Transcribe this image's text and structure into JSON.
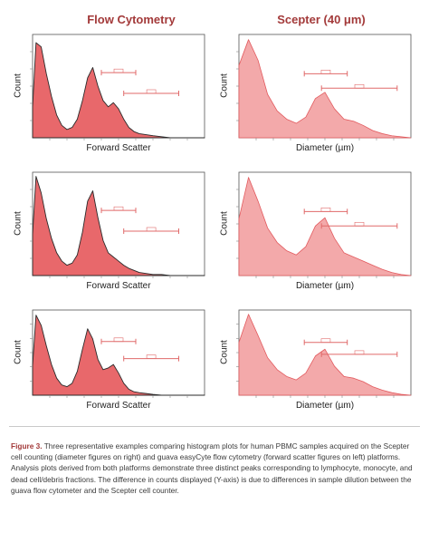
{
  "titles": {
    "left": "Flow Cytometry",
    "right": "Scepter (40 μm)"
  },
  "colors": {
    "fill": "#e8686b",
    "fill_light": "#f3a9aa",
    "outline_flow": "#2a2a2a",
    "outline_scepter": "#e25a5e",
    "title": "#a33a3a",
    "gate": "#e06a6a"
  },
  "caption": {
    "label": "Figure 3.",
    "text": "Three representative examples comparing histogram plots for human PBMC samples acquired on the Scepter cell counting (diameter figures on right) and guava easyCyte flow cytometry (forward scatter figures on left) platforms. Analysis plots derived from both platforms demonstrate three distinct peaks corresponding to lymphocyte, monocyte, and dead cell/debris fractions. The difference in counts displayed (Y-axis) is due to differences in sample dilution between the guava flow cytometer and the Scepter cell counter."
  },
  "chart_data": [
    {
      "type": "area",
      "panel": "flow",
      "row": 1,
      "ylabel": "Count",
      "xlabel": "Forward Scatter",
      "x": [
        0,
        200,
        500,
        800,
        1100,
        1400,
        1700,
        2000,
        2300,
        2600,
        2900,
        3200,
        3500,
        3800,
        4100,
        4400,
        4700,
        5000,
        5300,
        5600,
        5900,
        6200,
        6600,
        7000,
        7500,
        8000,
        9000,
        10000
      ],
      "y": [
        0.3,
        0.92,
        0.88,
        0.62,
        0.4,
        0.22,
        0.12,
        0.08,
        0.1,
        0.18,
        0.36,
        0.58,
        0.68,
        0.5,
        0.36,
        0.3,
        0.34,
        0.28,
        0.18,
        0.1,
        0.06,
        0.04,
        0.03,
        0.02,
        0.01,
        0.0,
        0.0,
        0.0
      ]
    },
    {
      "type": "area",
      "panel": "scepter",
      "row": 1,
      "ylabel": "Count",
      "xlabel": "Diameter (µm)",
      "x": [
        0,
        1,
        2,
        3,
        4,
        5,
        6,
        7,
        8,
        9,
        10,
        11,
        12,
        13,
        14,
        15,
        16,
        17,
        18
      ],
      "y": [
        0.7,
        0.95,
        0.75,
        0.42,
        0.26,
        0.18,
        0.14,
        0.2,
        0.38,
        0.44,
        0.28,
        0.18,
        0.16,
        0.12,
        0.07,
        0.04,
        0.02,
        0.01,
        0.0
      ]
    },
    {
      "type": "area",
      "panel": "flow",
      "row": 2,
      "ylabel": "Count",
      "xlabel": "Forward Scatter",
      "x": [
        0,
        200,
        500,
        800,
        1100,
        1400,
        1700,
        2000,
        2300,
        2600,
        2900,
        3200,
        3500,
        3800,
        4100,
        4400,
        4700,
        5000,
        5300,
        5600,
        5900,
        6200,
        6600,
        7000,
        7500,
        8000,
        9000,
        10000
      ],
      "y": [
        0.4,
        0.96,
        0.8,
        0.55,
        0.36,
        0.22,
        0.14,
        0.1,
        0.12,
        0.2,
        0.42,
        0.72,
        0.82,
        0.56,
        0.34,
        0.22,
        0.18,
        0.14,
        0.1,
        0.07,
        0.05,
        0.03,
        0.02,
        0.01,
        0.01,
        0.0,
        0.0,
        0.0
      ]
    },
    {
      "type": "area",
      "panel": "scepter",
      "row": 2,
      "ylabel": "Count",
      "xlabel": "Diameter (µm)",
      "x": [
        0,
        1,
        2,
        3,
        4,
        5,
        6,
        7,
        8,
        9,
        10,
        11,
        12,
        13,
        14,
        15,
        16,
        17,
        18
      ],
      "y": [
        0.55,
        0.95,
        0.72,
        0.46,
        0.32,
        0.24,
        0.2,
        0.28,
        0.48,
        0.56,
        0.36,
        0.22,
        0.18,
        0.14,
        0.1,
        0.06,
        0.03,
        0.01,
        0.0
      ]
    },
    {
      "type": "area",
      "panel": "flow",
      "row": 3,
      "ylabel": "Count",
      "xlabel": "Forward Scatter",
      "x": [
        0,
        200,
        500,
        800,
        1100,
        1400,
        1700,
        2000,
        2300,
        2600,
        2900,
        3200,
        3500,
        3800,
        4100,
        4400,
        4700,
        5000,
        5300,
        5600,
        5900,
        6200,
        6600,
        7000,
        7500,
        8000,
        9000,
        10000
      ],
      "y": [
        0.35,
        0.94,
        0.82,
        0.58,
        0.36,
        0.2,
        0.12,
        0.1,
        0.14,
        0.28,
        0.54,
        0.78,
        0.66,
        0.42,
        0.3,
        0.32,
        0.36,
        0.26,
        0.14,
        0.07,
        0.04,
        0.03,
        0.02,
        0.01,
        0.0,
        0.0,
        0.0,
        0.0
      ]
    },
    {
      "type": "area",
      "panel": "scepter",
      "row": 3,
      "ylabel": "Count",
      "xlabel": "Diameter (µm)",
      "x": [
        0,
        1,
        2,
        3,
        4,
        5,
        6,
        7,
        8,
        9,
        10,
        11,
        12,
        13,
        14,
        15,
        16,
        17,
        18
      ],
      "y": [
        0.62,
        0.95,
        0.7,
        0.44,
        0.3,
        0.22,
        0.18,
        0.26,
        0.46,
        0.54,
        0.34,
        0.22,
        0.2,
        0.16,
        0.1,
        0.06,
        0.03,
        0.01,
        0.0
      ]
    }
  ]
}
